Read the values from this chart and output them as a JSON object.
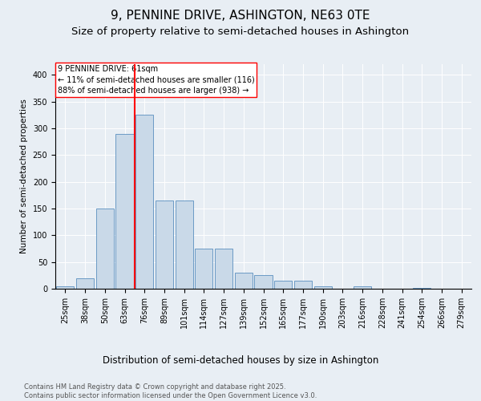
{
  "title": "9, PENNINE DRIVE, ASHINGTON, NE63 0TE",
  "subtitle": "Size of property relative to semi-detached houses in Ashington",
  "xlabel": "Distribution of semi-detached houses by size in Ashington",
  "ylabel": "Number of semi-detached properties",
  "categories": [
    "25sqm",
    "38sqm",
    "50sqm",
    "63sqm",
    "76sqm",
    "89sqm",
    "101sqm",
    "114sqm",
    "127sqm",
    "139sqm",
    "152sqm",
    "165sqm",
    "177sqm",
    "190sqm",
    "203sqm",
    "216sqm",
    "228sqm",
    "241sqm",
    "254sqm",
    "266sqm",
    "279sqm"
  ],
  "values": [
    5,
    20,
    150,
    290,
    325,
    165,
    165,
    75,
    75,
    30,
    25,
    15,
    15,
    5,
    0,
    5,
    0,
    0,
    2,
    0,
    0
  ],
  "bar_color": "#c9d9e8",
  "bar_edge_color": "#5a8fbf",
  "vline_x_index": 3.5,
  "vline_color": "red",
  "annotation_text": "9 PENNINE DRIVE: 61sqm\n← 11% of semi-detached houses are smaller (116)\n88% of semi-detached houses are larger (938) →",
  "annotation_box_color": "white",
  "annotation_box_edge": "red",
  "background_color": "#e8eef4",
  "plot_background": "#e8eef4",
  "footer_text": "Contains HM Land Registry data © Crown copyright and database right 2025.\nContains public sector information licensed under the Open Government Licence v3.0.",
  "ylim": [
    0,
    420
  ],
  "yticks": [
    0,
    50,
    100,
    150,
    200,
    250,
    300,
    350,
    400
  ],
  "title_fontsize": 11,
  "subtitle_fontsize": 9.5,
  "xlabel_fontsize": 8.5,
  "ylabel_fontsize": 7.5,
  "tick_fontsize": 7,
  "footer_fontsize": 6,
  "annotation_fontsize": 7
}
